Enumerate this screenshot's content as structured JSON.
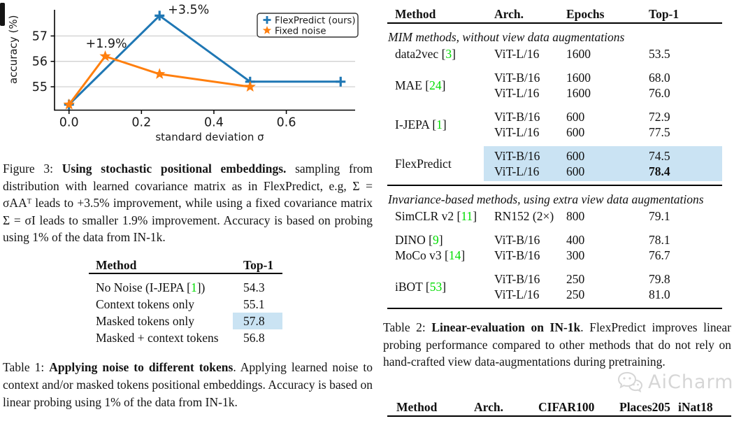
{
  "colors": {
    "series_blue": "#1f77b4",
    "series_orange": "#ff7f0e",
    "highlight_blue": "#cae3f3",
    "cite_green": "#00dd00",
    "grid_gray": "#cccccc",
    "watermark_gray": "#d6d6d6"
  },
  "chart_data": {
    "type": "line",
    "title": "",
    "xlabel": "standard deviation σ",
    "ylabel": "accuracy (%)",
    "xlim": [
      -0.04,
      0.79
    ],
    "ylim": [
      54.08,
      58.03
    ],
    "xticks": {
      "values": [
        0.0,
        0.2,
        0.4,
        0.6
      ],
      "labels": [
        "0.0",
        "0.2",
        "0.4",
        "0.6"
      ]
    },
    "yticks": {
      "values": [
        55,
        56,
        57
      ],
      "labels": [
        "55",
        "56",
        "57"
      ]
    },
    "grid": true,
    "legend_position": "upper right",
    "series": [
      {
        "name": "FlexPredict (ours)",
        "color": "#1f77b4",
        "marker": "plus",
        "x": [
          0.0,
          0.25,
          0.5,
          0.75
        ],
        "y": [
          54.3,
          57.8,
          55.2,
          55.2
        ]
      },
      {
        "name": "Fixed noise",
        "color": "#ff7f0e",
        "marker": "star",
        "x": [
          0.0,
          0.1,
          0.25,
          0.5
        ],
        "y": [
          54.3,
          56.2,
          55.5,
          55.0
        ]
      }
    ],
    "annotations": [
      {
        "text": "+3.5%",
        "x": 0.273,
        "y": 57.88
      },
      {
        "text": "+1.9%",
        "x": 0.046,
        "y": 56.55
      }
    ]
  },
  "figure3_caption": {
    "label": "Figure 3: ",
    "bold": "Using stochastic positional embeddings.",
    "rest": " sampling from distribution with learned covariance matrix as in FlexPredict, e.g, Σ = σAAᵀ leads to +3.5% improvement, while using a fixed covariance matrix Σ = σI leads to smaller 1.9% improvement. Accuracy is based on probing using 1% of the data from IN-1k."
  },
  "table1": {
    "headers": [
      "Method",
      "Top-1"
    ],
    "rows": [
      {
        "prefix": "No Noise (I-JEPA ",
        "cite": "1",
        "suffix": ")",
        "top1": "54.3",
        "highlight": false
      },
      {
        "prefix": "Context tokens only",
        "cite": "",
        "suffix": "",
        "top1": "55.1",
        "highlight": false
      },
      {
        "prefix": "Masked tokens only",
        "cite": "",
        "suffix": "",
        "top1": "57.8",
        "highlight": true
      },
      {
        "prefix": "Masked + context tokens",
        "cite": "",
        "suffix": "",
        "top1": "56.8",
        "highlight": false
      }
    ]
  },
  "table1_caption": {
    "label": "Table 1: ",
    "bold": "Applying noise to different tokens",
    "rest": ". Applying learned noise to context and/or masked tokens positional embeddings. Accuracy is based on linear probing using 1% of the data from IN-1k."
  },
  "table2": {
    "headers": [
      "Method",
      "Arch.",
      "Epochs",
      "Top-1"
    ],
    "sections": [
      {
        "label": "MIM methods, without view data augmentations",
        "groups": [
          {
            "prefix": "data2vec ",
            "cite": "3",
            "suffix": "",
            "highlight": false,
            "tight": false,
            "rows": [
              {
                "arch": "ViT-L/16",
                "epochs": "1600",
                "top1": "53.5",
                "bold": false
              }
            ]
          },
          {
            "prefix": "MAE ",
            "cite": "24",
            "suffix": "",
            "highlight": false,
            "tight": false,
            "rows": [
              {
                "arch": "ViT-B/16",
                "epochs": "1600",
                "top1": "68.0",
                "bold": false
              },
              {
                "arch": "ViT-L/16",
                "epochs": "1600",
                "top1": "76.0",
                "bold": false
              }
            ]
          },
          {
            "prefix": "I-JEPA ",
            "cite": "1",
            "suffix": "",
            "highlight": false,
            "tight": false,
            "rows": [
              {
                "arch": "ViT-B/16",
                "epochs": "600",
                "top1": "72.9",
                "bold": false
              },
              {
                "arch": "ViT-L/16",
                "epochs": "600",
                "top1": "77.5",
                "bold": false
              }
            ]
          },
          {
            "prefix": "FlexPredict",
            "cite": "",
            "suffix": "",
            "highlight": true,
            "tight": false,
            "rows": [
              {
                "arch": "ViT-B/16",
                "epochs": "600",
                "top1": "74.5",
                "bold": false
              },
              {
                "arch": "ViT-L/16",
                "epochs": "600",
                "top1": "78.4",
                "bold": true
              }
            ]
          }
        ]
      },
      {
        "label": "Invariance-based methods, using extra view data augmentations",
        "groups": [
          {
            "prefix": "SimCLR v2 ",
            "cite": "11",
            "suffix": "",
            "highlight": false,
            "tight": false,
            "rows": [
              {
                "arch": "RN152 (2×)",
                "epochs": "800",
                "top1": "79.1",
                "bold": false
              }
            ]
          },
          {
            "prefix": "DINO ",
            "cite": "9",
            "suffix": "",
            "highlight": false,
            "tight": false,
            "rows": [
              {
                "arch": "ViT-B/16",
                "epochs": "400",
                "top1": "78.1",
                "bold": false
              }
            ]
          },
          {
            "prefix": "MoCo v3 ",
            "cite": "14",
            "suffix": "",
            "highlight": false,
            "tight": true,
            "rows": [
              {
                "arch": "ViT-B/16",
                "epochs": "300",
                "top1": "76.7",
                "bold": false
              }
            ]
          },
          {
            "prefix": "iBOT ",
            "cite": "53",
            "suffix": "",
            "highlight": false,
            "tight": false,
            "rows": [
              {
                "arch": "ViT-B/16",
                "epochs": "250",
                "top1": "79.8",
                "bold": false
              },
              {
                "arch": "ViT-L/16",
                "epochs": "250",
                "top1": "81.0",
                "bold": false
              }
            ]
          }
        ]
      }
    ]
  },
  "table2_caption": {
    "label": "Table 2: ",
    "bold": "Linear-evaluation on IN-1k",
    "rest": ". FlexPredict improves linear probing performance compared to other methods that do not rely on hand-crafted view data-augmentations during pretraining."
  },
  "table3": {
    "headers": [
      "Method",
      "Arch.",
      "CIFAR100",
      "Places205",
      "iNat18"
    ]
  },
  "watermark": {
    "text": "AiCharm"
  }
}
